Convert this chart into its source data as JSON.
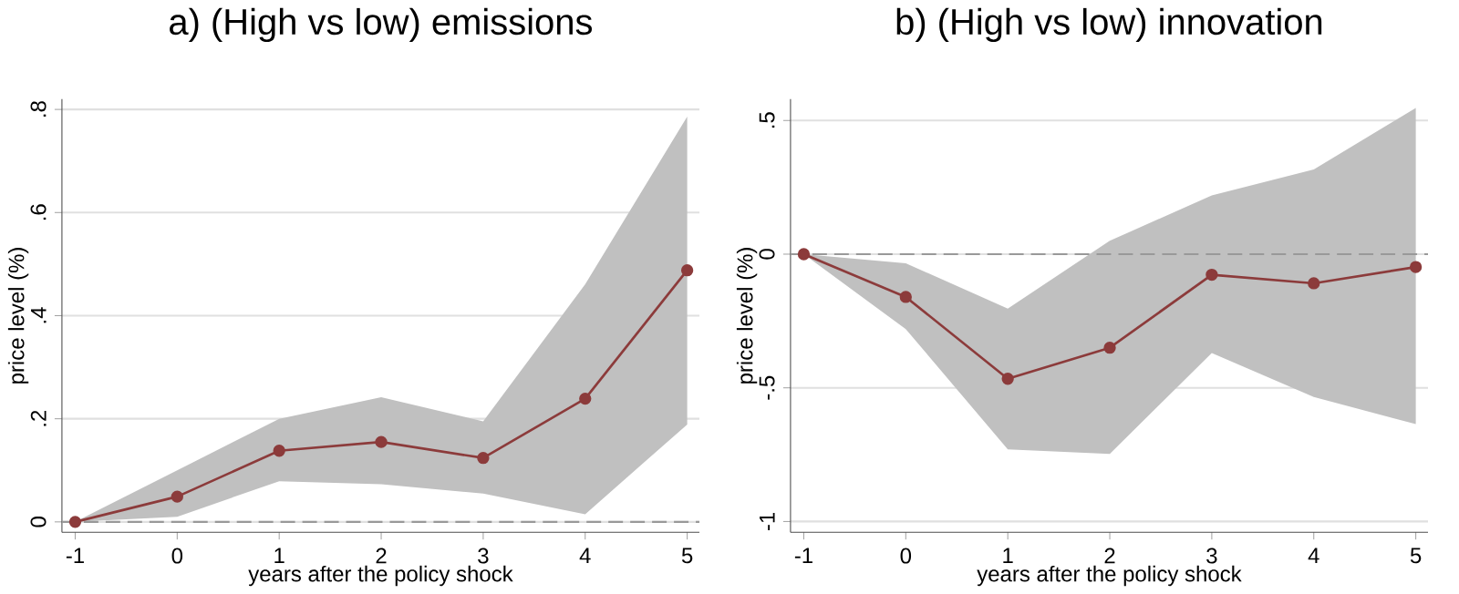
{
  "chart_data": [
    {
      "type": "line",
      "title": "a) (High vs low) emissions",
      "xlabel": "years after the policy shock",
      "ylabel": "price level (%)",
      "x": [
        -1,
        0,
        1,
        2,
        3,
        4,
        5
      ],
      "series": [
        {
          "color": "#8c3b3b",
          "values": [
            0,
            0.049,
            0.138,
            0.155,
            0.124,
            0.239,
            0.488
          ],
          "lower": [
            0,
            0.01,
            0.079,
            0.073,
            0.055,
            0.015,
            0.189
          ],
          "upper": [
            0,
            0.1,
            0.2,
            0.242,
            0.195,
            0.461,
            0.786
          ]
        }
      ],
      "xlim": [
        -1.13,
        5.12
      ],
      "ylim": [
        -0.02,
        0.82
      ],
      "xticks": [
        -1,
        0,
        1,
        2,
        3,
        4,
        5
      ],
      "yticks": [
        0,
        {
          "value": 0.2,
          "label": ".2"
        },
        {
          "value": 0.4,
          "label": ".4"
        },
        {
          "value": 0.6,
          "label": ".6"
        },
        {
          "value": 0.8,
          "label": ".8"
        }
      ],
      "ref_lines": [
        {
          "axis": "y",
          "value": 0,
          "color": "#999999",
          "line_style": "dashed"
        }
      ],
      "grid": "y",
      "marker": "circle",
      "line_style": "solid"
    },
    {
      "type": "line",
      "title": "b) (High vs low) innovation",
      "xlabel": "years after the policy shock",
      "ylabel": "price level (%)",
      "x": [
        -1,
        0,
        1,
        2,
        3,
        4,
        5
      ],
      "series": [
        {
          "color": "#8c3b3b",
          "values": [
            0,
            -0.16,
            -0.466,
            -0.35,
            -0.077,
            -0.109,
            -0.048
          ],
          "lower": [
            0,
            -0.28,
            -0.73,
            -0.747,
            -0.37,
            -0.534,
            -0.636
          ],
          "upper": [
            0,
            -0.034,
            -0.204,
            0.05,
            0.22,
            0.317,
            0.547
          ]
        }
      ],
      "xlim": [
        -1.13,
        5.12
      ],
      "ylim": [
        -1.04,
        0.58
      ],
      "xticks": [
        -1,
        0,
        1,
        2,
        3,
        4,
        5
      ],
      "yticks": [
        -1,
        {
          "value": -0.5,
          "label": "-.5"
        },
        0,
        {
          "value": 0.5,
          "label": ".5"
        }
      ],
      "ref_lines": [
        {
          "axis": "y",
          "value": 0,
          "color": "#999999",
          "line_style": "dashed"
        }
      ],
      "grid": "y",
      "marker": "circle",
      "line_style": "solid"
    }
  ]
}
